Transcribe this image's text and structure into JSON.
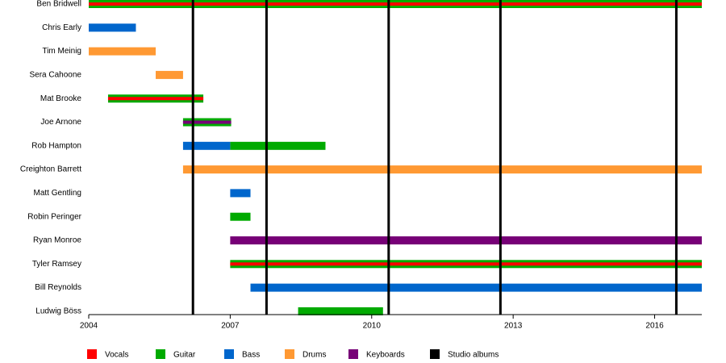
{
  "chart_data": {
    "type": "timeline",
    "categories": [
      "Ben Bridwell",
      "Chris Early",
      "Tim Meinig",
      "Sera Cahoone",
      "Mat Brooke",
      "Joe Arnone",
      "Rob Hampton",
      "Creighton Barrett",
      "Matt Gentling",
      "Robin Peringer",
      "Ryan Monroe",
      "Tyler Ramsey",
      "Bill Reynolds",
      "Ludwig Böss"
    ],
    "series": [
      {
        "name": "Vocals",
        "color": "#ff0000",
        "values": [
          [
            2004,
            2017
          ],
          null,
          null,
          null,
          [
            2004.41,
            2006.43
          ],
          null,
          null,
          null,
          null,
          null,
          null,
          [
            2007,
            2017
          ],
          null,
          null
        ]
      },
      {
        "name": "Guitar",
        "color": "#00aa00",
        "values": [
          [
            2004,
            2017
          ],
          null,
          null,
          null,
          [
            2004.41,
            2006.43
          ],
          [
            2006,
            2007.02
          ],
          [
            2007,
            2009.02
          ],
          null,
          null,
          [
            2007,
            2007.43
          ],
          null,
          [
            2007,
            2017
          ],
          null,
          [
            2008.44,
            2010.24
          ]
        ]
      },
      {
        "name": "Bass",
        "color": "#0066cc",
        "values": [
          null,
          [
            2004,
            2005
          ],
          null,
          null,
          null,
          null,
          [
            2006,
            2007
          ],
          null,
          [
            2007,
            2007.43
          ],
          null,
          null,
          null,
          [
            2007.43,
            2017
          ],
          null
        ]
      },
      {
        "name": "Drums",
        "color": "#ff9933",
        "values": [
          null,
          null,
          [
            2004,
            2005.42
          ],
          [
            2005.42,
            2006
          ],
          null,
          null,
          null,
          [
            2006,
            2017
          ],
          null,
          null,
          null,
          null,
          null,
          null
        ]
      },
      {
        "name": "Keyboards",
        "color": "#770077",
        "values": [
          null,
          null,
          null,
          null,
          null,
          [
            2006,
            2007.02
          ],
          null,
          null,
          null,
          null,
          [
            2007,
            2017
          ],
          null,
          null,
          null
        ]
      }
    ],
    "events": {
      "name": "Studio albums",
      "color": "#000000",
      "values": [
        2006.21,
        2007.77,
        2010.36,
        2012.73,
        2016.46
      ]
    },
    "xlim": [
      2004,
      2017
    ],
    "xticks": [
      2004,
      2007,
      2010,
      2013,
      2016
    ]
  }
}
